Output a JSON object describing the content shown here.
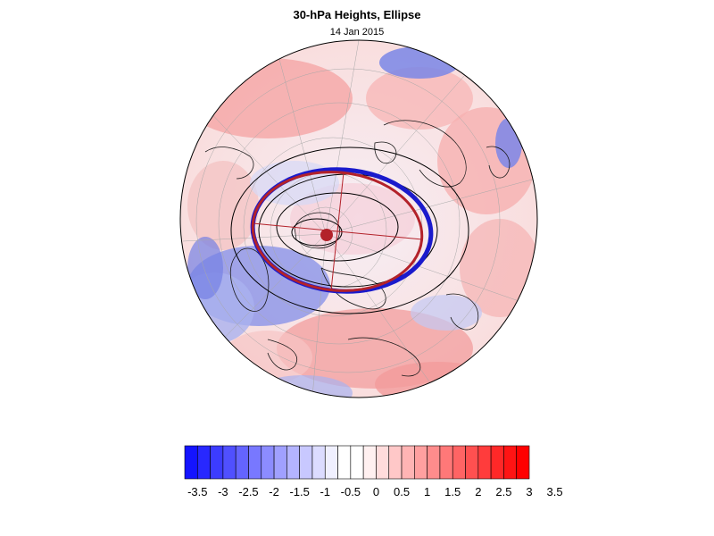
{
  "title": "30-hPa Heights, Ellipse",
  "subtitle": "14 Jan 2015",
  "colorbar": {
    "labels": [
      "-3.5",
      "-3",
      "-2.5",
      "-2",
      "-1.5",
      "-1",
      "-0.5",
      "0",
      "0.5",
      "1",
      "1.5",
      "2",
      "2.5",
      "3",
      "3.5"
    ],
    "colors": [
      "#1414ff",
      "#2828ff",
      "#3c3cff",
      "#5050ff",
      "#6464ff",
      "#7878ff",
      "#8c8cff",
      "#a0a0ff",
      "#b4b4ff",
      "#c8c8ff",
      "#dcdcff",
      "#f0f0ff",
      "#ffffff",
      "#ffffff",
      "#fff0f0",
      "#ffdcdc",
      "#ffc8c8",
      "#ffb4b4",
      "#ffa0a0",
      "#ff8c8c",
      "#ff7878",
      "#ff6464",
      "#ff5050",
      "#ff3c3c",
      "#ff2828",
      "#ff1414",
      "#ff0000"
    ]
  },
  "map": {
    "projection": "polar stereographic (north pole centered)",
    "ellipse_colors": {
      "observed": "#1a1acc",
      "fitted": "#b3222a",
      "contours": "#000000"
    }
  }
}
